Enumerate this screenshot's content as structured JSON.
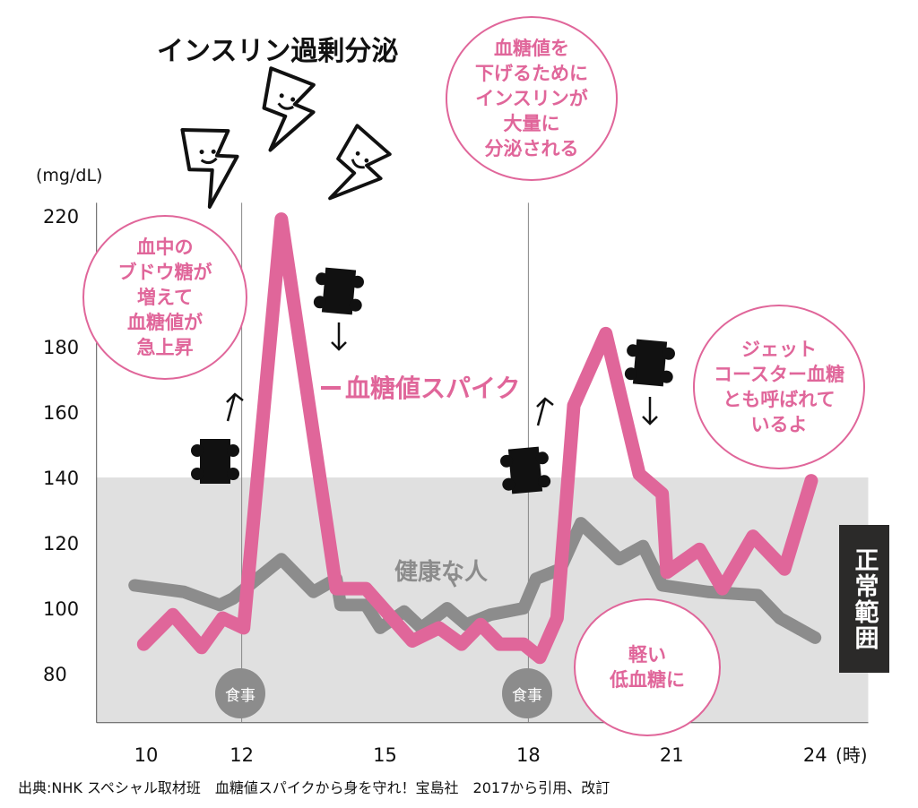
{
  "title": "インスリン過剰分泌",
  "bubbles": {
    "insulin": "血糖値を\n下げるために\nインスリンが\n大量に\n分泌される",
    "rise": "血中の\nブドウ糖が\n増えて\n血糖値が\n急上昇",
    "jet": "ジェット\nコースター血糖\nとも呼ばれて\nいるよ",
    "low": "軽い\n低血糖に"
  },
  "labels": {
    "spike": "血糖値スパイク",
    "healthy": "健康な人",
    "normal_range": "正常範囲",
    "meal": "食事"
  },
  "caption": "出典:NHK スペシャル取材班　血糖値スパイクから身を守れ！宝島社　2017から引用、改訂",
  "colors": {
    "spike": "#e0669a",
    "healthy": "#8c8c8c",
    "band": "#e0e0e0"
  },
  "chart_data": {
    "type": "line",
    "title": "インスリン過剰分泌",
    "xlabel": "(時)",
    "ylabel": "(mg/dL)",
    "xlim": [
      9,
      25
    ],
    "ylim": [
      65,
      224
    ],
    "x_ticks": [
      10,
      12,
      15,
      18,
      21,
      24
    ],
    "y_ticks": [
      80,
      100,
      120,
      140,
      160,
      180,
      220
    ],
    "x_tick_labels": [
      "10",
      "12",
      "15",
      "18",
      "21",
      "24"
    ],
    "y_tick_labels": [
      "80",
      "100",
      "120",
      "140",
      "160",
      "180",
      "220"
    ],
    "normal_range": [
      65,
      140
    ],
    "meals": [
      12,
      18
    ],
    "series": [
      {
        "name": "血糖値スパイク",
        "x": [
          9.95,
          10.56,
          11.16,
          11.6,
          12.04,
          12.83,
          13.98,
          14.6,
          15.57,
          16.13,
          16.6,
          17.0,
          17.4,
          17.9,
          18.24,
          18.6,
          18.95,
          19.62,
          20.32,
          20.8,
          20.9,
          21.58,
          22.06,
          22.7,
          23.36,
          23.92
        ],
        "y": [
          89,
          98,
          88,
          97,
          94,
          219,
          106,
          106,
          90,
          94,
          89,
          95,
          89,
          89,
          85,
          97,
          162,
          184,
          141,
          135,
          111,
          118,
          106,
          122,
          112,
          139
        ]
      },
      {
        "name": "健康な人",
        "x": [
          9.76,
          10.79,
          11.54,
          11.82,
          12.83,
          13.5,
          13.98,
          14.07,
          14.6,
          14.9,
          15.4,
          15.76,
          16.3,
          16.7,
          17.2,
          17.9,
          18.16,
          18.67,
          19.1,
          19.9,
          20.4,
          20.8,
          21.76,
          22.8,
          23.26,
          24.0
        ],
        "y": [
          107,
          105,
          101,
          103,
          115,
          105,
          109,
          101,
          101,
          94,
          99,
          94,
          100,
          95,
          98,
          100,
          109,
          112,
          126,
          115,
          119,
          107,
          105,
          104,
          97,
          91
        ]
      }
    ]
  }
}
